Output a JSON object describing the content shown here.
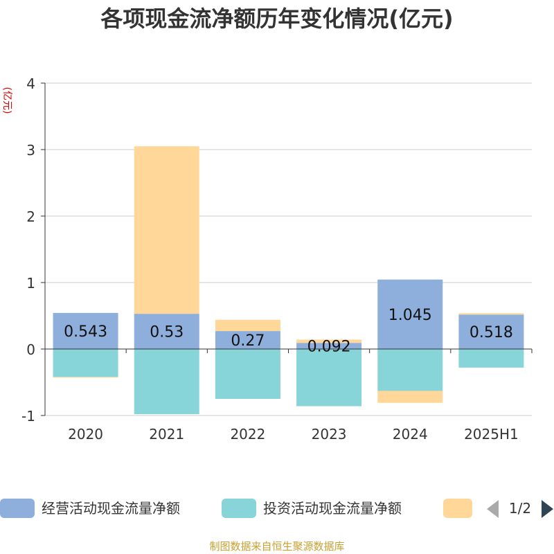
{
  "title": "各项现金流净额历年变化情况(亿元)",
  "footer": "制图数据来自恒生聚源数据库",
  "legend_page": "1/2",
  "chart_data": {
    "type": "bar",
    "stacked": true,
    "title": "各项现金流净额历年变化情况(亿元)",
    "ylabel": "(亿元)",
    "ylim": [
      -1,
      4
    ],
    "yticks": [
      -1,
      0,
      1,
      2,
      3,
      4
    ],
    "grid": true,
    "legend_position": "bottom",
    "categories": [
      "2020",
      "2021",
      "2022",
      "2023",
      "2024",
      "2025H1"
    ],
    "series": [
      {
        "name": "经营活动现金流量净额",
        "color": "#8eaedc",
        "values": [
          0.543,
          0.53,
          0.27,
          0.092,
          1.045,
          0.518
        ],
        "labels": [
          "0.543",
          "0.53",
          "0.27",
          "0.092",
          "1.045",
          "0.518"
        ]
      },
      {
        "name": "投资活动现金流量净额",
        "color": "#87d5d8",
        "values": [
          -0.42,
          -0.98,
          -0.75,
          -0.86,
          -0.63,
          -0.28
        ]
      },
      {
        "name": "",
        "color": "#ffd899",
        "values": [
          -0.01,
          2.52,
          0.17,
          0.05,
          -0.18,
          0.02
        ]
      }
    ]
  }
}
